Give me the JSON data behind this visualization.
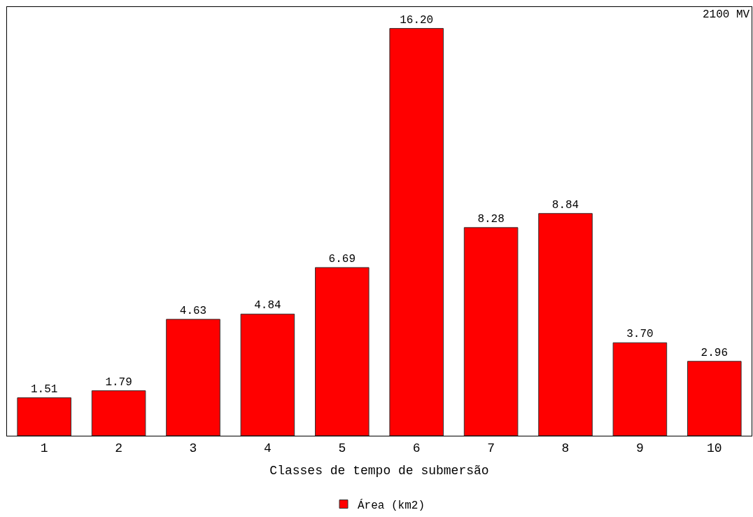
{
  "chart_data": {
    "type": "bar",
    "xlabel": "Classes de tempo de submersão",
    "categories": [
      "1",
      "2",
      "3",
      "4",
      "5",
      "6",
      "7",
      "8",
      "9",
      "10"
    ],
    "series": [
      {
        "name": "Área (km2)",
        "color": "#ff0000",
        "values": [
          1.51,
          1.79,
          4.63,
          4.84,
          6.69,
          16.2,
          8.28,
          8.84,
          3.7,
          2.96
        ],
        "value_labels": [
          "1.51",
          "1.79",
          "4.63",
          "4.84",
          "6.69",
          "16.20",
          "8.28",
          "8.84",
          "3.70",
          "2.96"
        ]
      }
    ],
    "legend": "bottom",
    "annotations": [
      "2100 MV"
    ]
  }
}
